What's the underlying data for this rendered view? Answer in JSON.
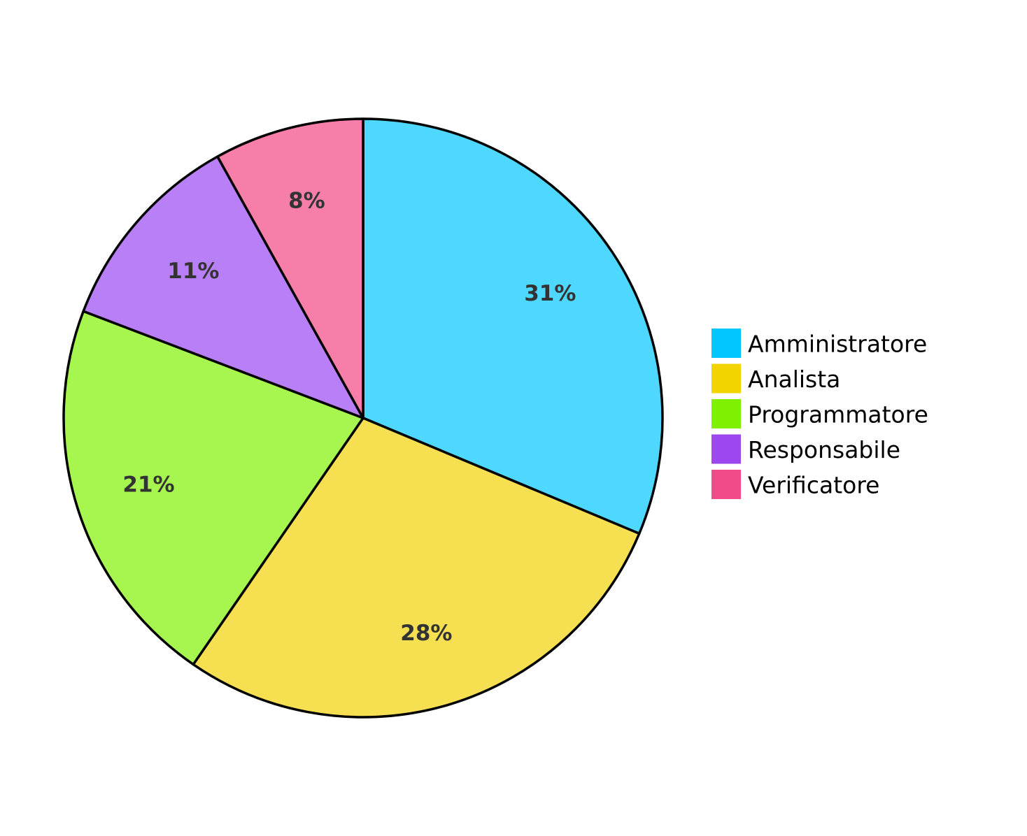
{
  "chart_data": {
    "type": "pie",
    "start_angle_deg": 0,
    "direction": "clockwise",
    "legend_position": "right",
    "slices": [
      {
        "label": "Amministratore",
        "value": 31,
        "display": "31%",
        "fill": "#4fd8ff",
        "legend_color": "#00c5ff"
      },
      {
        "label": "Analista",
        "value": 28,
        "display": "28%",
        "fill": "#f6e052",
        "legend_color": "#f1d400"
      },
      {
        "label": "Programmatore",
        "value": 21,
        "display": "21%",
        "fill": "#a6f64f",
        "legend_color": "#7ef000"
      },
      {
        "label": "Responsabile",
        "value": 11,
        "display": "11%",
        "fill": "#b97ff6",
        "legend_color": "#9d47f0"
      },
      {
        "label": "Verificatore",
        "value": 8,
        "display": "8%",
        "fill": "#f87eaa",
        "legend_color": "#f34a89"
      }
    ]
  }
}
